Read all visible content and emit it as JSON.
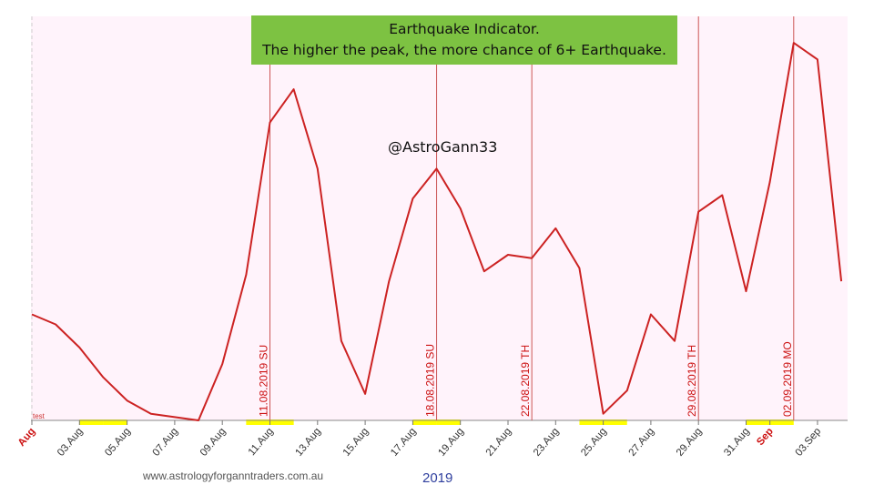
{
  "title_line1": "Earthquake Indicator.",
  "title_line2": "The higher the peak, the more chance of 6+ Earthquake.",
  "watermark": "@AstroGann33",
  "footer": {
    "website": "www.astrologyforganntraders.com.au",
    "year": "2019"
  },
  "legend_marker": "test",
  "colors": {
    "line": "#cc2222",
    "plot_bg": "#fff3fb",
    "marker_lines": "#cc5555",
    "title_bg": "#7dc242",
    "highlight": "#ffff00",
    "month_label": "#cc1111"
  },
  "chart_data": {
    "type": "line",
    "title": "Earthquake Indicator.",
    "subtitle": "The higher the peak, the more chance of 6+ Earthquake.",
    "xlabel": "2019",
    "ylabel": "",
    "grid": false,
    "x": [
      "01.Aug",
      "02.Aug",
      "03.Aug",
      "04.Aug",
      "05.Aug",
      "06.Aug",
      "07.Aug",
      "08.Aug",
      "09.Aug",
      "10.Aug",
      "11.Aug",
      "12.Aug",
      "13.Aug",
      "14.Aug",
      "15.Aug",
      "16.Aug",
      "17.Aug",
      "18.Aug",
      "19.Aug",
      "20.Aug",
      "21.Aug",
      "22.Aug",
      "23.Aug",
      "24.Aug",
      "25.Aug",
      "26.Aug",
      "27.Aug",
      "28.Aug",
      "29.Aug",
      "30.Aug",
      "31.Aug",
      "01.Sep",
      "02.Sep",
      "03.Sep",
      "04.Sep"
    ],
    "y": [
      32,
      29,
      22,
      13,
      6,
      2,
      1,
      0,
      17,
      44,
      90,
      100,
      76,
      24,
      8,
      42,
      67,
      76,
      64,
      45,
      50,
      49,
      58,
      46,
      2,
      9,
      32,
      24,
      63,
      68,
      39,
      72,
      114,
      109,
      42
    ],
    "ylim": [
      0,
      122
    ],
    "x_tick_labels": [
      "Aug",
      "03.Aug",
      "05.Aug",
      "07.Aug",
      "09.Aug",
      "11.Aug",
      "13.Aug",
      "15.Aug",
      "17.Aug",
      "19.Aug",
      "21.Aug",
      "23.Aug",
      "25.Aug",
      "27.Aug",
      "29.Aug",
      "31.Aug",
      "Sep",
      "03.Sep"
    ],
    "x_tick_dates": [
      "01.Aug",
      "03.Aug",
      "05.Aug",
      "07.Aug",
      "09.Aug",
      "11.Aug",
      "13.Aug",
      "15.Aug",
      "17.Aug",
      "19.Aug",
      "21.Aug",
      "23.Aug",
      "25.Aug",
      "27.Aug",
      "29.Aug",
      "31.Aug",
      "01.Sep",
      "03.Sep"
    ],
    "month_ticks": [
      "Aug",
      "Sep"
    ],
    "markers": [
      {
        "date": "11.08.2019",
        "label": "11.08.2019 SU"
      },
      {
        "date": "18.08.2019",
        "label": "18.08.2019 SU"
      },
      {
        "date": "22.08.2019",
        "label": "22.08.2019 TH"
      },
      {
        "date": "29.08.2019",
        "label": "29.08.2019 TH"
      },
      {
        "date": "02.09.2019",
        "label": "02.09.2019 MO"
      }
    ],
    "highlighted_days": [
      "03.Aug",
      "04.Aug",
      "10.Aug",
      "11.Aug",
      "17.Aug",
      "18.Aug",
      "24.Aug",
      "25.Aug",
      "31.Aug",
      "01.Sep"
    ]
  }
}
